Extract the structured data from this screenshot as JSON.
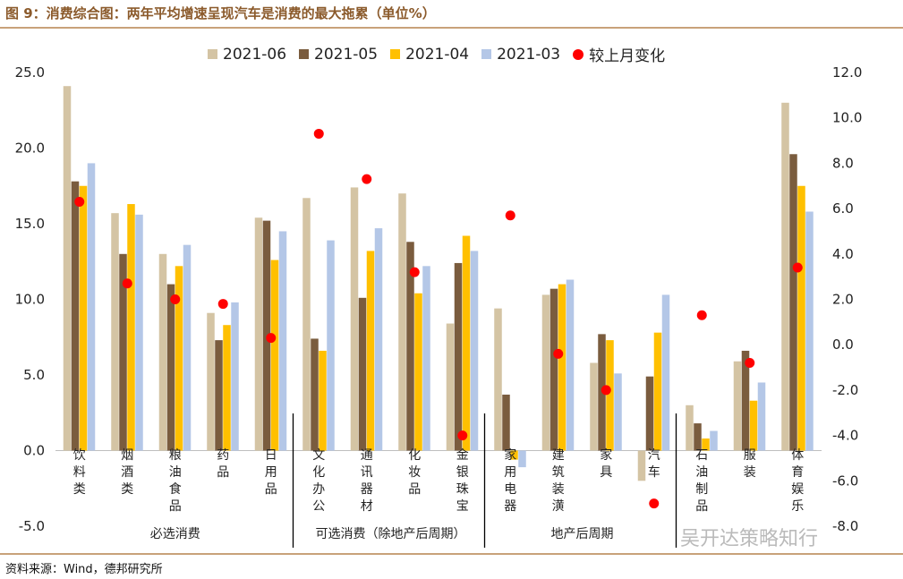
{
  "title": "图 9：消费综合图：两年平均增速呈现汽车是消费的最大拖累（单位%）",
  "source": "资料来源：Wind，德邦研究所",
  "watermark": "吴开达策略知行",
  "colors": {
    "s2021_06": "#d4c4a4",
    "s2021_05": "#7a5c3e",
    "s2021_04": "#ffc000",
    "s2021_03": "#b4c7e7",
    "change": "#ff0000"
  },
  "chart_data": {
    "type": "bar",
    "categories": [
      "饮料类",
      "烟酒类",
      "粮油食品",
      "药品",
      "日用品",
      "文化办公",
      "通讯器材",
      "化妆品",
      "金银珠宝",
      "家用电器",
      "建筑装潢",
      "家具",
      "汽车",
      "石油制品",
      "服装",
      "体育娱乐"
    ],
    "category_labels": [
      [
        "饮",
        "料",
        "类"
      ],
      [
        "烟",
        "酒",
        "类"
      ],
      [
        "粮",
        "油",
        "食",
        "品"
      ],
      [
        "药",
        "品"
      ],
      [
        "日",
        "用",
        "品"
      ],
      [
        "文",
        "化",
        "办",
        "公"
      ],
      [
        "通",
        "讯",
        "器",
        "材"
      ],
      [
        "化",
        "妆",
        "品"
      ],
      [
        "金",
        "银",
        "珠",
        "宝"
      ],
      [
        "家",
        "用",
        "电",
        "器"
      ],
      [
        "建",
        "筑",
        "装",
        "潢"
      ],
      [
        "家",
        "具"
      ],
      [
        "汽",
        "车"
      ],
      [
        "石",
        "油",
        "制",
        "品"
      ],
      [
        "服",
        "装"
      ],
      [
        "体",
        "育",
        "娱",
        "乐"
      ]
    ],
    "series": [
      {
        "name": "2021-06",
        "axis": "left",
        "values": [
          24.1,
          15.7,
          13.0,
          9.1,
          15.4,
          16.7,
          17.4,
          17.0,
          8.4,
          9.4,
          10.3,
          5.8,
          -2.0,
          3.0,
          5.9,
          23.0
        ]
      },
      {
        "name": "2021-05",
        "axis": "left",
        "values": [
          17.8,
          13.0,
          11.0,
          7.3,
          15.2,
          7.4,
          10.1,
          13.8,
          12.4,
          3.7,
          10.7,
          7.7,
          4.9,
          1.8,
          6.6,
          19.6
        ]
      },
      {
        "name": "2021-04",
        "axis": "left",
        "values": [
          17.5,
          16.3,
          12.2,
          8.3,
          12.6,
          6.6,
          13.2,
          10.4,
          14.2,
          -0.6,
          11.0,
          7.3,
          7.8,
          0.8,
          3.3,
          17.5
        ]
      },
      {
        "name": "2021-03",
        "axis": "left",
        "values": [
          19.0,
          15.6,
          13.6,
          9.8,
          14.5,
          13.9,
          14.7,
          12.2,
          13.2,
          -1.1,
          11.3,
          5.1,
          10.3,
          1.3,
          4.5,
          15.8
        ]
      },
      {
        "name": "较上月变化",
        "axis": "right",
        "type": "scatter",
        "values": [
          6.3,
          2.7,
          2.0,
          1.8,
          0.3,
          9.3,
          7.3,
          3.2,
          -4.0,
          5.7,
          -0.4,
          -2.0,
          -7.0,
          1.3,
          -0.8,
          3.4
        ]
      }
    ],
    "y_left": {
      "range": [
        -5,
        25
      ],
      "ticks": [
        "-5.0",
        "0.0",
        "5.0",
        "10.0",
        "15.0",
        "20.0",
        "25.0"
      ],
      "tick_values": [
        -5,
        0,
        5,
        10,
        15,
        20,
        25
      ]
    },
    "y_right": {
      "range": [
        -8,
        12
      ],
      "ticks": [
        "-8.0",
        "-6.0",
        "-4.0",
        "-2.0",
        "0.0",
        "2.0",
        "4.0",
        "6.0",
        "8.0",
        "10.0",
        "12.0"
      ],
      "tick_values": [
        -8,
        -6,
        -4,
        -2,
        0,
        2,
        4,
        6,
        8,
        10,
        12
      ]
    },
    "groups": [
      {
        "label": "必选消费",
        "from": 0,
        "to": 4
      },
      {
        "label": "可选消费（除地产后周期）",
        "from": 5,
        "to": 8
      },
      {
        "label": "地产后周期",
        "from": 9,
        "to": 12
      }
    ],
    "legend_position": "top",
    "grid": false
  }
}
